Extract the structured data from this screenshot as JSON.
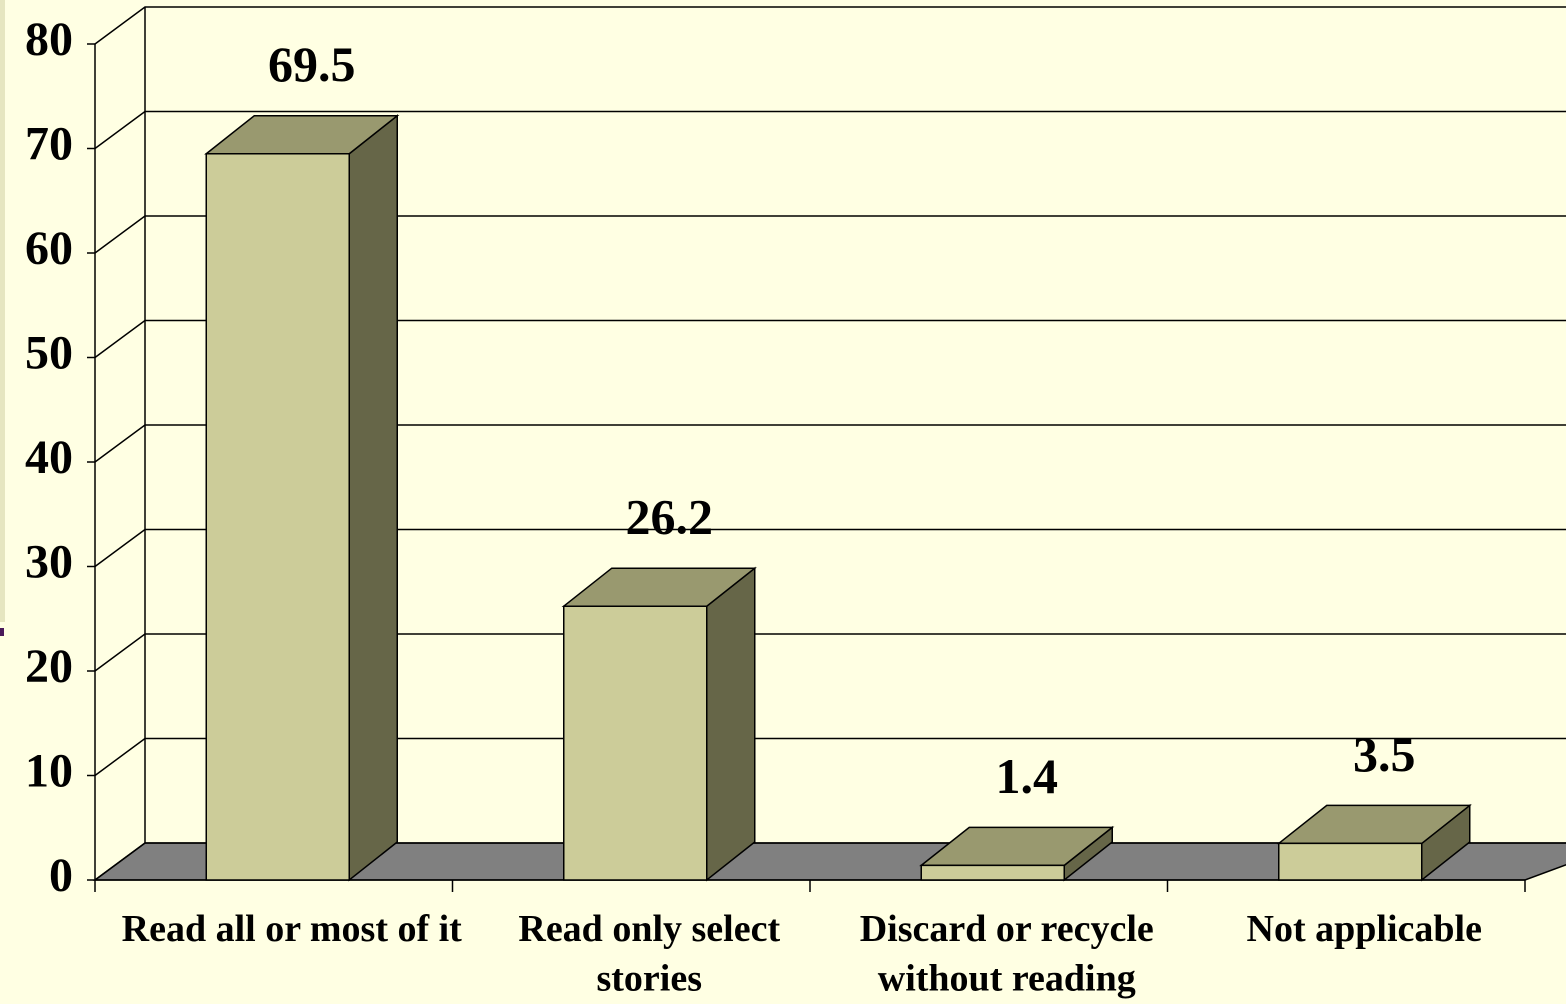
{
  "chart_data": {
    "type": "bar3d",
    "categories": [
      "Read all or most of it",
      "Read only select stories",
      "Discard or recycle without reading",
      "Not applicable"
    ],
    "values": [
      69.5,
      26.2,
      1.4,
      3.5
    ],
    "color": "#cccc99",
    "top_color": "#99996f",
    "side_color": "#666648",
    "ylim": [
      0,
      80
    ],
    "yticks": [
      0,
      10,
      20,
      30,
      40,
      50,
      60,
      70,
      80
    ],
    "grid": true
  }
}
